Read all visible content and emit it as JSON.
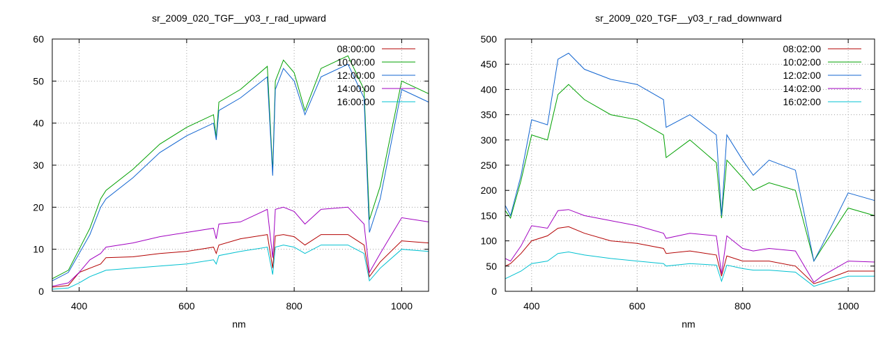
{
  "chart_data": [
    {
      "type": "line",
      "title": "sr_2009_020_TGF__y03_r_rad_upward",
      "xlabel": "nm",
      "ylabel": "",
      "xlim": [
        350,
        1050
      ],
      "ylim": [
        0,
        60
      ],
      "xticks": [
        400,
        600,
        800,
        1000
      ],
      "yticks": [
        0,
        10,
        20,
        30,
        40,
        50,
        60
      ],
      "grid": true,
      "legend_position": "top-right",
      "x": [
        350,
        380,
        400,
        420,
        440,
        450,
        500,
        550,
        600,
        650,
        655,
        660,
        700,
        750,
        760,
        765,
        780,
        800,
        820,
        850,
        900,
        930,
        940,
        960,
        1000,
        1050
      ],
      "series": [
        {
          "name": "08:00:00",
          "color": "#b30000",
          "values": [
            1.0,
            1.4,
            4.5,
            5.5,
            6.5,
            8.0,
            8.2,
            9.0,
            9.5,
            10.5,
            9.0,
            11.0,
            12.5,
            13.5,
            5.5,
            13.2,
            13.5,
            13.0,
            11.0,
            13.5,
            13.5,
            11.0,
            3.5,
            7.0,
            12.0,
            11.5
          ]
        },
        {
          "name": "10:00:00",
          "color": "#00a000",
          "values": [
            3.0,
            5.0,
            10.0,
            15.0,
            22.0,
            24.0,
            29.0,
            35.0,
            39.0,
            42.0,
            36.5,
            45.0,
            48.0,
            53.5,
            28.5,
            50.0,
            55.0,
            52.0,
            43.0,
            53.0,
            56.0,
            48.0,
            17.0,
            25.0,
            50.0,
            47.0
          ]
        },
        {
          "name": "12:00:00",
          "color": "#1064d0",
          "values": [
            2.5,
            4.5,
            9.0,
            13.5,
            20.0,
            22.0,
            27.0,
            33.0,
            37.0,
            40.0,
            36.0,
            43.0,
            46.0,
            51.0,
            27.5,
            48.0,
            53.0,
            50.0,
            42.0,
            51.0,
            54.0,
            46.0,
            14.0,
            22.0,
            48.0,
            45.0
          ]
        },
        {
          "name": "14:00:00",
          "color": "#a000c0",
          "values": [
            1.2,
            2.0,
            4.5,
            7.5,
            9.0,
            10.5,
            11.5,
            13.0,
            14.0,
            15.0,
            12.5,
            16.0,
            16.5,
            19.5,
            8.0,
            19.5,
            20.0,
            19.0,
            16.0,
            19.5,
            20.0,
            16.0,
            4.5,
            9.0,
            17.5,
            16.5
          ]
        },
        {
          "name": "16:00:00",
          "color": "#00c0d0",
          "values": [
            0.5,
            0.8,
            2.0,
            3.5,
            4.5,
            5.0,
            5.5,
            6.0,
            6.5,
            7.5,
            6.5,
            8.5,
            9.5,
            10.5,
            4.0,
            10.5,
            11.0,
            10.5,
            9.0,
            11.0,
            11.0,
            9.0,
            2.5,
            5.5,
            10.0,
            9.5
          ]
        }
      ]
    },
    {
      "type": "line",
      "title": "sr_2009_020_TGF__y03_r_rad_downward",
      "xlabel": "nm",
      "ylabel": "",
      "xlim": [
        350,
        1050
      ],
      "ylim": [
        0,
        500
      ],
      "xticks": [
        400,
        600,
        800,
        1000
      ],
      "yticks": [
        0,
        50,
        100,
        150,
        200,
        250,
        300,
        350,
        400,
        450,
        500
      ],
      "grid": true,
      "legend_position": "top-right",
      "x": [
        350,
        360,
        380,
        400,
        430,
        450,
        470,
        500,
        550,
        600,
        650,
        655,
        700,
        750,
        760,
        770,
        800,
        820,
        850,
        900,
        935,
        950,
        1000,
        1050
      ],
      "series": [
        {
          "name": "08:02:00",
          "color": "#b30000",
          "values": [
            50,
            55,
            75,
            100,
            110,
            125,
            128,
            115,
            100,
            95,
            85,
            75,
            80,
            72,
            30,
            70,
            60,
            60,
            60,
            50,
            15,
            20,
            40,
            40
          ]
        },
        {
          "name": "10:02:00",
          "color": "#00a000",
          "values": [
            160,
            145,
            220,
            310,
            300,
            390,
            410,
            380,
            350,
            340,
            310,
            265,
            300,
            255,
            145,
            260,
            225,
            200,
            215,
            200,
            60,
            85,
            165,
            150
          ]
        },
        {
          "name": "12:02:00",
          "color": "#1064d0",
          "values": [
            170,
            150,
            230,
            340,
            330,
            460,
            472,
            440,
            420,
            410,
            380,
            325,
            350,
            310,
            150,
            310,
            260,
            230,
            260,
            240,
            60,
            90,
            195,
            180
          ]
        },
        {
          "name": "14:02:00",
          "color": "#a000c0",
          "values": [
            65,
            60,
            90,
            130,
            125,
            160,
            162,
            150,
            140,
            130,
            115,
            105,
            115,
            110,
            35,
            110,
            85,
            80,
            85,
            80,
            18,
            30,
            60,
            58
          ]
        },
        {
          "name": "16:02:00",
          "color": "#00c0d0",
          "values": [
            25,
            30,
            40,
            55,
            60,
            75,
            78,
            72,
            65,
            60,
            55,
            50,
            55,
            52,
            20,
            52,
            45,
            42,
            42,
            38,
            10,
            15,
            30,
            30
          ]
        }
      ]
    }
  ]
}
